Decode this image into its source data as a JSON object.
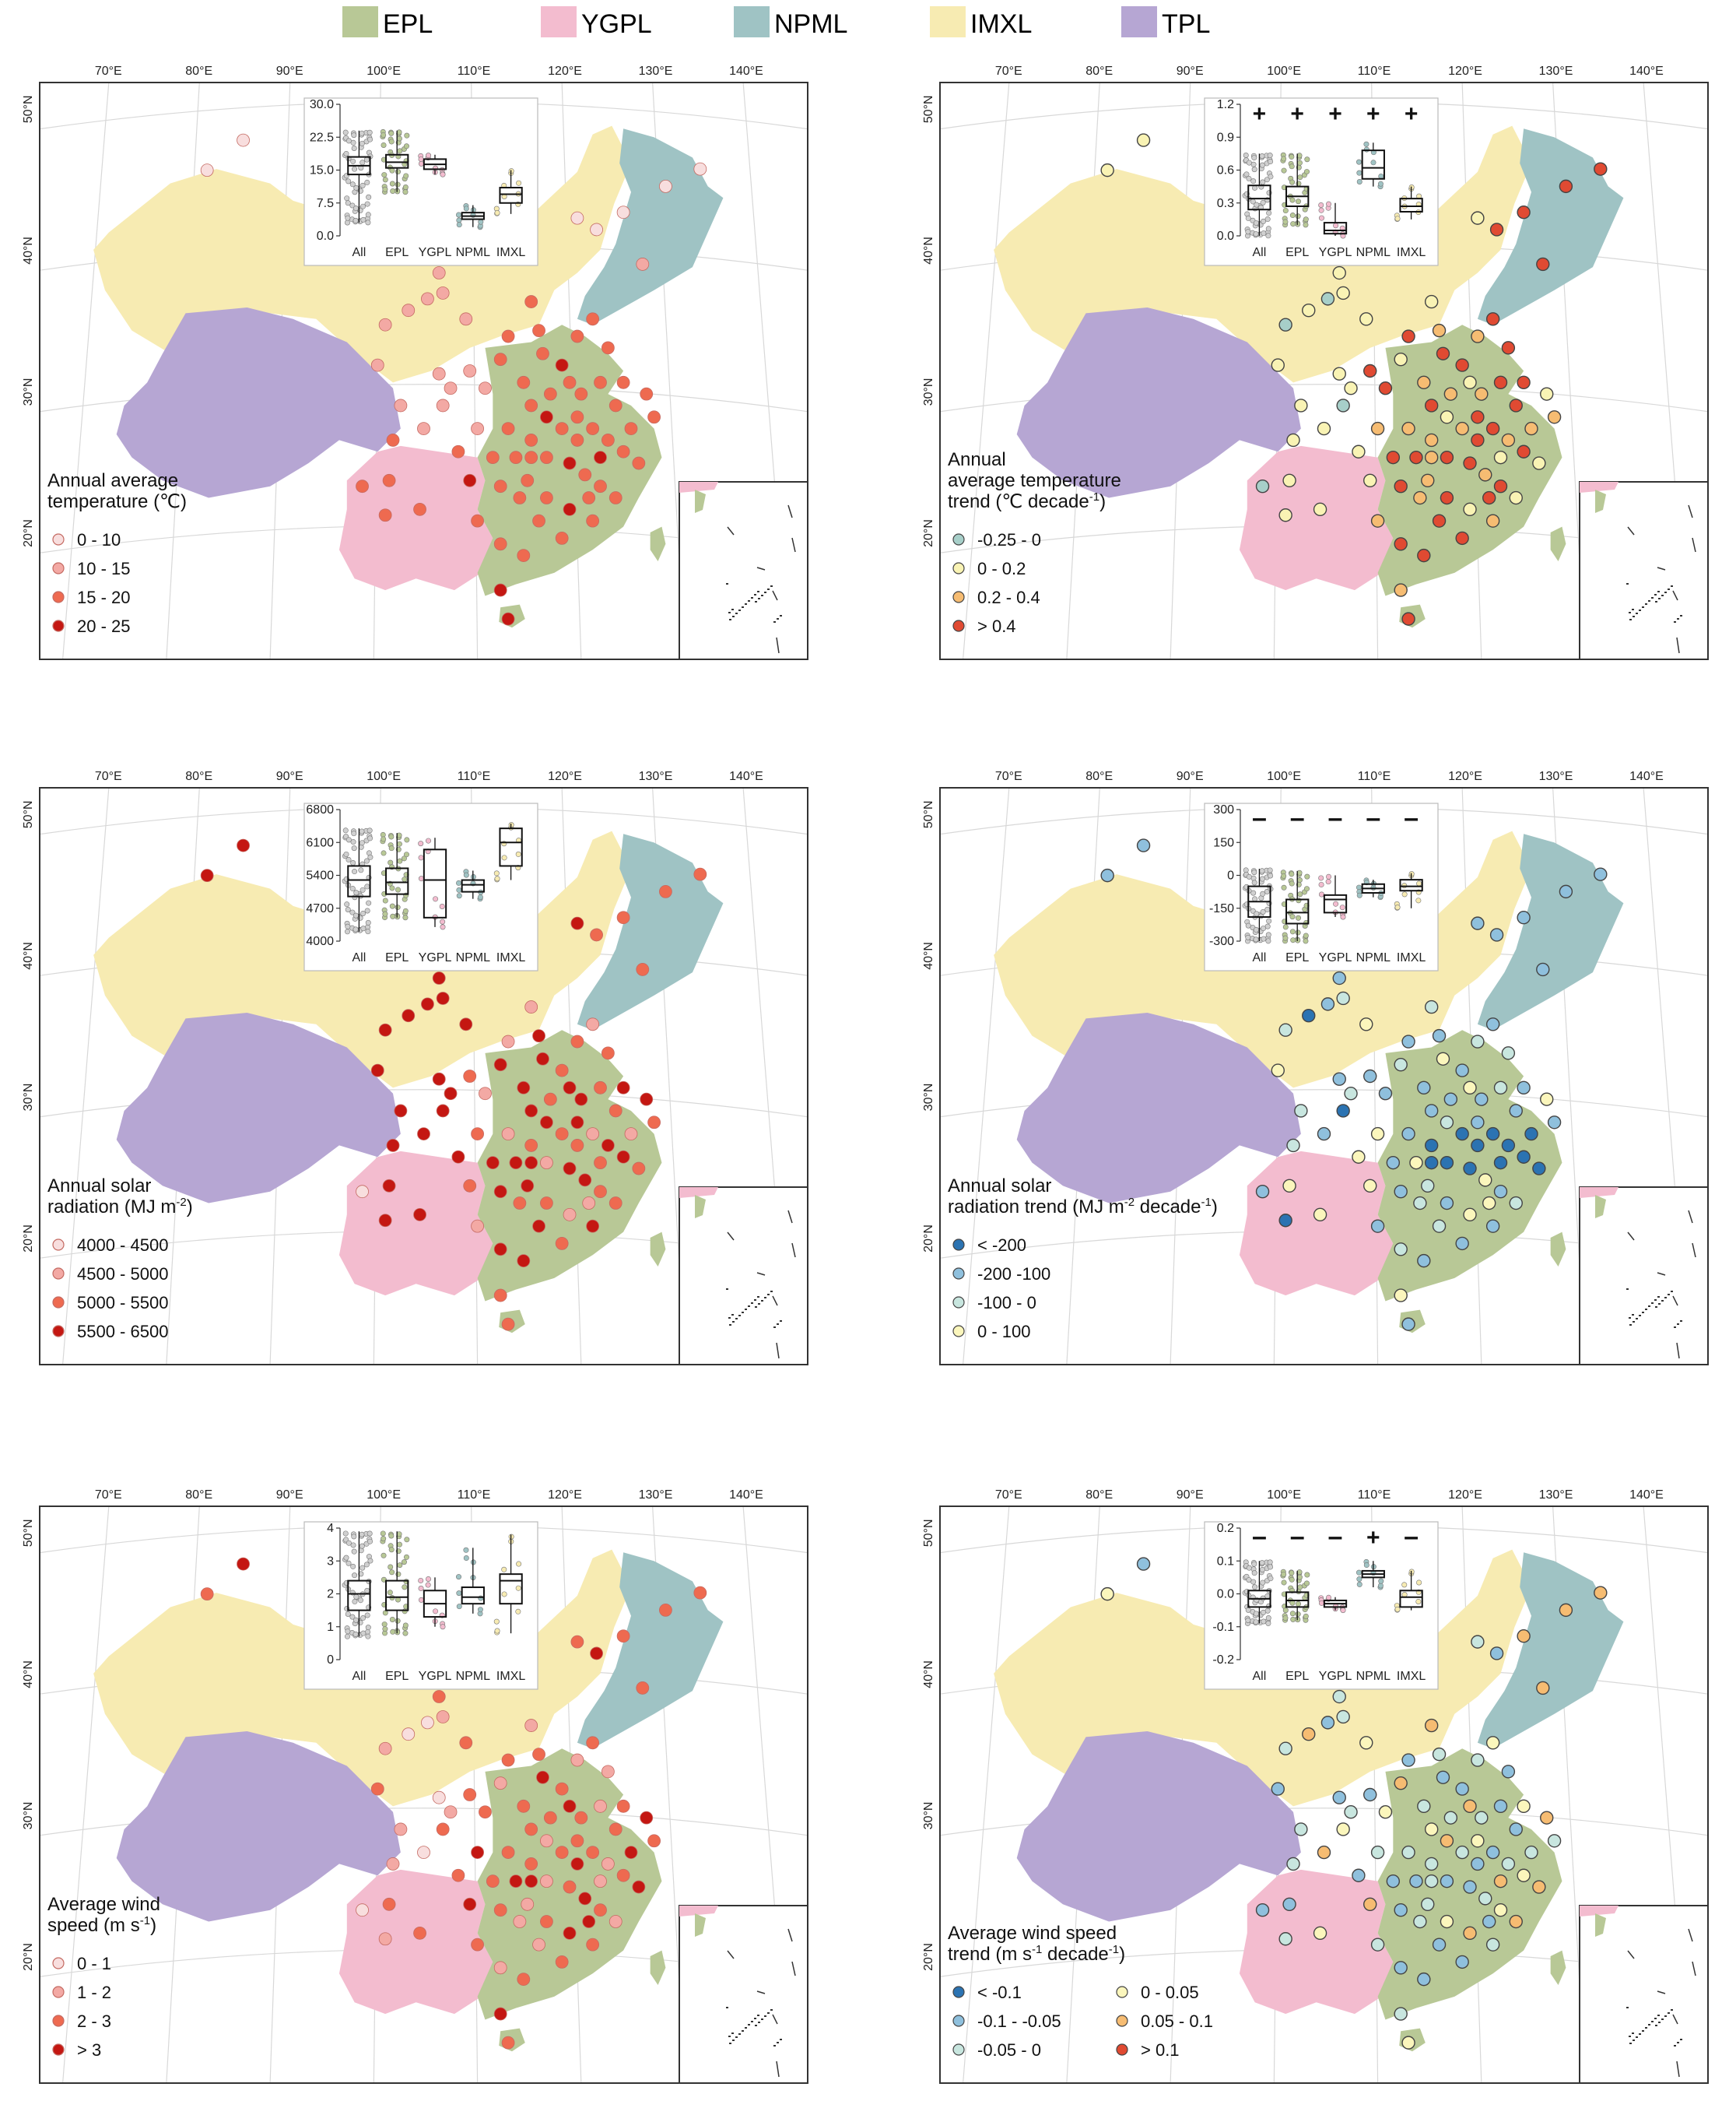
{
  "legend": {
    "items": [
      {
        "label": "EPL",
        "color": "#b8c896"
      },
      {
        "label": "YGPL",
        "color": "#f3bccf"
      },
      {
        "label": "NPML",
        "color": "#9fc3c4"
      },
      {
        "label": "IMXL",
        "color": "#f7ebb2"
      },
      {
        "label": "TPL",
        "color": "#b6a6d3"
      }
    ]
  },
  "map_axes": {
    "lon_labels": [
      "70°E",
      "80°E",
      "90°E",
      "100°E",
      "110°E",
      "120°E",
      "130°E",
      "140°E"
    ],
    "lat_labels": [
      "50°N",
      "40°N",
      "30°N",
      "20°N"
    ]
  },
  "inset_categories": [
    "All",
    "EPL",
    "YGPL",
    "NPML",
    "IMXL"
  ],
  "panels": [
    {
      "id": "temperature",
      "title_lines": [
        "Annual average",
        " temperature (℃)"
      ],
      "classes": [
        {
          "label": "0 - 10",
          "color": "#f8dede"
        },
        {
          "label": "10 - 15",
          "color": "#f3a9a4"
        },
        {
          "label": "15 - 20",
          "color": "#ee6a50"
        },
        {
          "label": "20 - 25",
          "color": "#c41712"
        }
      ],
      "chart_data": {
        "type": "box",
        "categories": [
          "All",
          "EPL",
          "YGPL",
          "NPML",
          "IMXL"
        ],
        "ylim": [
          0,
          30
        ],
        "yticks": [
          "0.0",
          "7.5",
          "15.0",
          "22.5",
          "30.0"
        ],
        "boxes": [
          {
            "min": 3,
            "q1": 14,
            "median": 16,
            "q3": 18,
            "max": 24
          },
          {
            "min": 10,
            "q1": 15.5,
            "median": 16.8,
            "q3": 18.5,
            "max": 24
          },
          {
            "min": 14,
            "q1": 15.2,
            "median": 16.3,
            "q3": 17.5,
            "max": 18.5
          },
          {
            "min": 2,
            "q1": 3.8,
            "median": 4.5,
            "q3": 5.3,
            "max": 7
          },
          {
            "min": 5,
            "q1": 7.5,
            "median": 9.5,
            "q3": 11,
            "max": 15
          }
        ],
        "markers": []
      }
    },
    {
      "id": "temperature_trend",
      "title_lines": [
        "Annual",
        "average temperature",
        "trend (℃ decade"
      ],
      "title_sup": "-1",
      "title_tail": ")",
      "classes": [
        {
          "label": "-0.25 - 0",
          "color": "#a7cfc9"
        },
        {
          "label": "0 - 0.2",
          "color": "#f9f3b4"
        },
        {
          "label": "0.2 - 0.4",
          "color": "#f6bc72"
        },
        {
          "label": "> 0.4",
          "color": "#e04a32"
        }
      ],
      "chart_data": {
        "type": "box",
        "categories": [
          "All",
          "EPL",
          "YGPL",
          "NPML",
          "IMXL"
        ],
        "ylim": [
          0,
          1.2
        ],
        "yticks": [
          "0.0",
          "0.3",
          "0.6",
          "0.9",
          "1.2"
        ],
        "boxes": [
          {
            "min": 0,
            "q1": 0.24,
            "median": 0.34,
            "q3": 0.46,
            "max": 0.75
          },
          {
            "min": 0.1,
            "q1": 0.27,
            "median": 0.36,
            "q3": 0.45,
            "max": 0.75
          },
          {
            "min": 0,
            "q1": 0.02,
            "median": 0.05,
            "q3": 0.12,
            "max": 0.3
          },
          {
            "min": 0.45,
            "q1": 0.52,
            "median": 0.62,
            "q3": 0.78,
            "max": 0.85
          },
          {
            "min": 0.15,
            "q1": 0.22,
            "median": 0.27,
            "q3": 0.34,
            "max": 0.45
          }
        ],
        "markers": [
          "+",
          "+",
          "+",
          "+",
          "+"
        ]
      }
    },
    {
      "id": "solar",
      "title_lines": [
        "Annual solar",
        "radiation (MJ m"
      ],
      "title_sup": "-2",
      "title_tail": ")",
      "classes": [
        {
          "label": "4000 - 4500",
          "color": "#f8dede"
        },
        {
          "label": "4500 - 5000",
          "color": "#f3a9a4"
        },
        {
          "label": "5000 - 5500",
          "color": "#ee6a50"
        },
        {
          "label": "5500 - 6500",
          "color": "#c41712"
        }
      ],
      "chart_data": {
        "type": "box",
        "categories": [
          "All",
          "EPL",
          "YGPL",
          "NPML",
          "IMXL"
        ],
        "ylim": [
          4000,
          6800
        ],
        "yticks": [
          "4000",
          "4700",
          "5400",
          "6100",
          "6800"
        ],
        "boxes": [
          {
            "min": 4200,
            "q1": 4950,
            "median": 5300,
            "q3": 5600,
            "max": 6400
          },
          {
            "min": 4500,
            "q1": 5000,
            "median": 5250,
            "q3": 5550,
            "max": 6300
          },
          {
            "min": 4300,
            "q1": 4500,
            "median": 5300,
            "q3": 5950,
            "max": 6200
          },
          {
            "min": 4900,
            "q1": 5050,
            "median": 5200,
            "q3": 5300,
            "max": 5500
          },
          {
            "min": 5300,
            "q1": 5600,
            "median": 6100,
            "q3": 6400,
            "max": 6500
          }
        ],
        "markers": []
      }
    },
    {
      "id": "solar_trend",
      "title_lines": [
        "Annual solar",
        "radiation trend (MJ m"
      ],
      "title_sup": "-2",
      "title_tail": " decade",
      "title_sup2": "-1",
      "title_tail2": ")",
      "classes": [
        {
          "label": "< -200",
          "color": "#2b73b2"
        },
        {
          "label": "-200 -100",
          "color": "#8fc0dd"
        },
        {
          "label": "-100 - 0",
          "color": "#c8e6df"
        },
        {
          "label": "0 - 100",
          "color": "#fbf6bc"
        }
      ],
      "chart_data": {
        "type": "box",
        "categories": [
          "All",
          "EPL",
          "YGPL",
          "NPML",
          "IMXL"
        ],
        "ylim": [
          -300,
          300
        ],
        "yticks": [
          "-300",
          "-150",
          "0",
          "150",
          "300"
        ],
        "boxes": [
          {
            "min": -300,
            "q1": -190,
            "median": -120,
            "q3": -50,
            "max": 30
          },
          {
            "min": -300,
            "q1": -220,
            "median": -170,
            "q3": -110,
            "max": 20
          },
          {
            "min": -190,
            "q1": -170,
            "median": -110,
            "q3": -90,
            "max": 0
          },
          {
            "min": -100,
            "q1": -80,
            "median": -60,
            "q3": -40,
            "max": -20
          },
          {
            "min": -150,
            "q1": -70,
            "median": -50,
            "q3": -20,
            "max": 10
          }
        ],
        "markers": [
          "–",
          "–",
          "–",
          "–",
          "–"
        ]
      }
    },
    {
      "id": "wind",
      "title_lines": [
        "Average wind",
        "speed (m s"
      ],
      "title_sup": "-1",
      "title_tail": ")",
      "classes": [
        {
          "label": "0 - 1",
          "color": "#f8dede"
        },
        {
          "label": "1 - 2",
          "color": "#f3a9a4"
        },
        {
          "label": "2 - 3",
          "color": "#ee6a50"
        },
        {
          "label": "> 3",
          "color": "#c41712"
        }
      ],
      "chart_data": {
        "type": "box",
        "categories": [
          "All",
          "EPL",
          "YGPL",
          "NPML",
          "IMXL"
        ],
        "ylim": [
          0,
          4
        ],
        "yticks": [
          "0",
          "1",
          "2",
          "3",
          "4"
        ],
        "boxes": [
          {
            "min": 0.7,
            "q1": 1.5,
            "median": 2.0,
            "q3": 2.4,
            "max": 3.9
          },
          {
            "min": 0.8,
            "q1": 1.5,
            "median": 1.9,
            "q3": 2.4,
            "max": 3.9
          },
          {
            "min": 1.0,
            "q1": 1.3,
            "median": 1.7,
            "q3": 2.1,
            "max": 2.5
          },
          {
            "min": 1.4,
            "q1": 1.7,
            "median": 1.9,
            "q3": 2.2,
            "max": 3.4
          },
          {
            "min": 0.8,
            "q1": 1.7,
            "median": 2.4,
            "q3": 2.6,
            "max": 3.8
          }
        ],
        "markers": []
      }
    },
    {
      "id": "wind_trend",
      "title_lines": [
        "Average wind speed",
        "trend (m s"
      ],
      "title_sup": "-1",
      "title_tail": " decade",
      "title_sup2": "-1",
      "title_tail2": ")",
      "classes": [
        {
          "label": "< -0.1",
          "color": "#2b73b2"
        },
        {
          "label": "-0.1 - -0.05",
          "color": "#8fc0dd"
        },
        {
          "label": "-0.05 - 0",
          "color": "#c8e6df"
        },
        {
          "label": "0 - 0.05",
          "color": "#fbf6bc"
        },
        {
          "label": "0.05 - 0.1",
          "color": "#f6bc72"
        },
        {
          "label": "> 0.1",
          "color": "#e04a32"
        }
      ],
      "chart_data": {
        "type": "box",
        "categories": [
          "All",
          "EPL",
          "YGPL",
          "NPML",
          "IMXL"
        ],
        "ylim": [
          -0.2,
          0.2
        ],
        "yticks": [
          "-0.2",
          "-0.1",
          "0.0",
          "0.1",
          "0.2"
        ],
        "boxes": [
          {
            "min": -0.09,
            "q1": -0.04,
            "median": -0.015,
            "q3": 0.01,
            "max": 0.1
          },
          {
            "min": -0.08,
            "q1": -0.04,
            "median": -0.02,
            "q3": 0.005,
            "max": 0.07
          },
          {
            "min": -0.05,
            "q1": -0.04,
            "median": -0.03,
            "q3": -0.02,
            "max": -0.01
          },
          {
            "min": 0.02,
            "q1": 0.05,
            "median": 0.06,
            "q3": 0.07,
            "max": 0.1
          },
          {
            "min": -0.05,
            "q1": -0.04,
            "median": -0.01,
            "q3": 0.01,
            "max": 0.07
          }
        ],
        "markers": [
          "–",
          "–",
          "–",
          "+",
          "–"
        ]
      }
    }
  ]
}
